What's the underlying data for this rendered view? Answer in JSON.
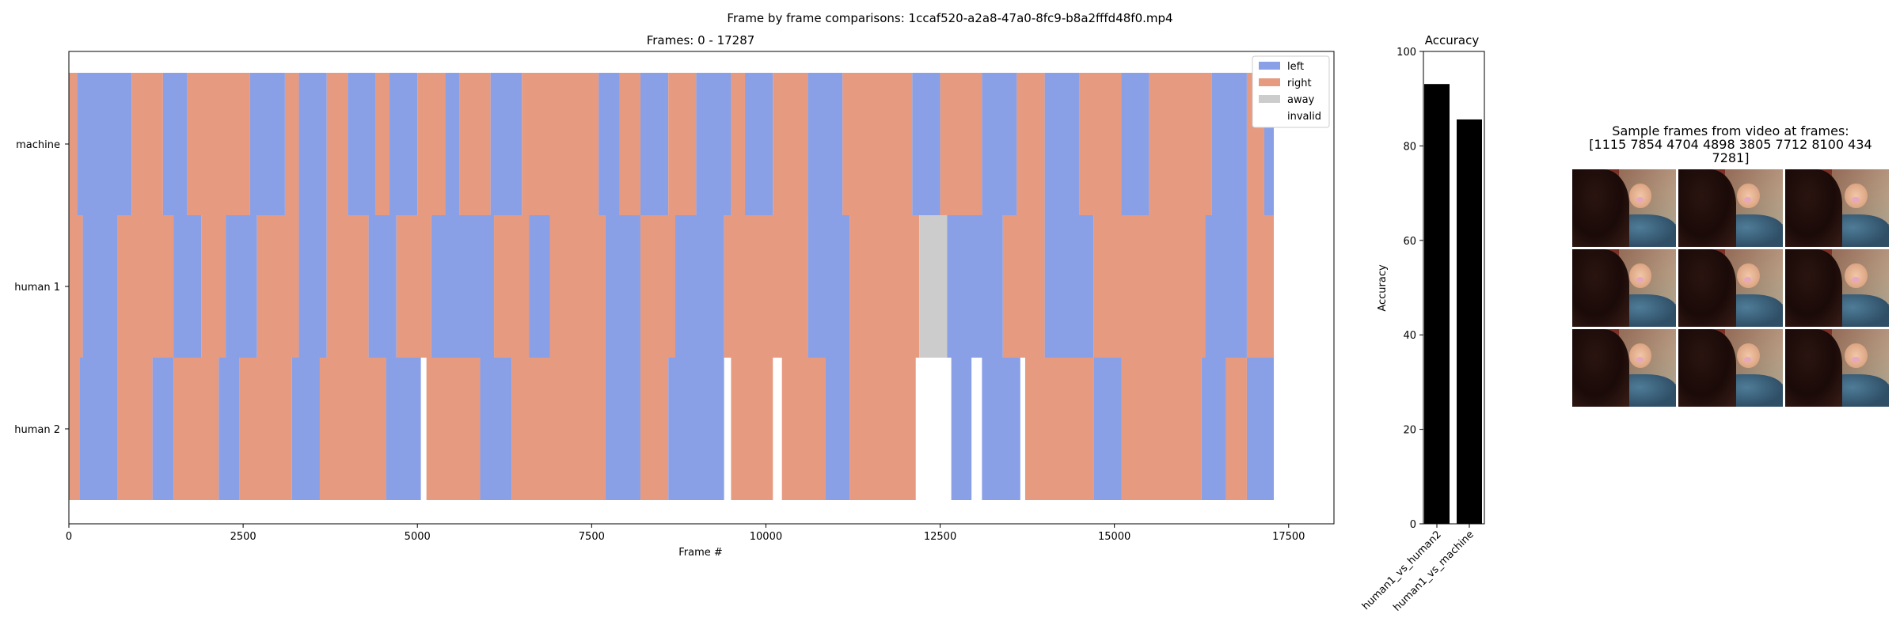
{
  "figure": {
    "suptitle": "Frame by frame comparisons: 1ccaf520-a2a8-47a0-8fc9-b8a2fffd48f0.mp4"
  },
  "chart_data": [
    {
      "type": "timeline",
      "title": "Frames: 0 - 17287",
      "xlabel": "Frame #",
      "xlim": [
        0,
        18150
      ],
      "xticks": [
        0,
        2500,
        5000,
        7500,
        10000,
        12500,
        15000,
        17500
      ],
      "xtick_labels": [
        "0",
        "2500",
        "5000",
        "7500",
        "10000",
        "12500",
        "15000",
        "17500"
      ],
      "rows": [
        "machine",
        "human 1",
        "human 2"
      ],
      "colors": {
        "left": "#8aa0e6",
        "right": "#e69a80",
        "away": "#cccccc",
        "invalid": "#ffffff"
      },
      "legend": [
        "left",
        "right",
        "away",
        "invalid"
      ],
      "legend_location": "upper right",
      "series": [
        {
          "name": "machine",
          "segments": [
            [
              0,
              120,
              "right"
            ],
            [
              120,
              900,
              "left"
            ],
            [
              900,
              1350,
              "right"
            ],
            [
              1350,
              1700,
              "left"
            ],
            [
              1700,
              2600,
              "right"
            ],
            [
              2600,
              3100,
              "left"
            ],
            [
              3100,
              3300,
              "right"
            ],
            [
              3300,
              3700,
              "left"
            ],
            [
              3700,
              4000,
              "right"
            ],
            [
              4000,
              4400,
              "left"
            ],
            [
              4400,
              4600,
              "right"
            ],
            [
              4600,
              5000,
              "left"
            ],
            [
              5000,
              5400,
              "right"
            ],
            [
              5400,
              5600,
              "left"
            ],
            [
              5600,
              6050,
              "right"
            ],
            [
              6050,
              6500,
              "left"
            ],
            [
              6500,
              7600,
              "right"
            ],
            [
              7600,
              7900,
              "left"
            ],
            [
              7900,
              8200,
              "right"
            ],
            [
              8200,
              8600,
              "left"
            ],
            [
              8600,
              9000,
              "right"
            ],
            [
              9000,
              9500,
              "left"
            ],
            [
              9500,
              9700,
              "right"
            ],
            [
              9700,
              10100,
              "left"
            ],
            [
              10100,
              10600,
              "right"
            ],
            [
              10600,
              11100,
              "left"
            ],
            [
              11100,
              12100,
              "right"
            ],
            [
              12100,
              12500,
              "left"
            ],
            [
              12500,
              13100,
              "right"
            ],
            [
              13100,
              13600,
              "left"
            ],
            [
              13600,
              14000,
              "right"
            ],
            [
              14000,
              14500,
              "left"
            ],
            [
              14500,
              15100,
              "right"
            ],
            [
              15100,
              15500,
              "left"
            ],
            [
              15500,
              16400,
              "right"
            ],
            [
              16400,
              16900,
              "left"
            ],
            [
              16900,
              17150,
              "right"
            ],
            [
              17150,
              17287,
              "left"
            ]
          ]
        },
        {
          "name": "human 1",
          "segments": [
            [
              0,
              200,
              "right"
            ],
            [
              200,
              700,
              "left"
            ],
            [
              700,
              1500,
              "right"
            ],
            [
              1500,
              1900,
              "left"
            ],
            [
              1900,
              2250,
              "right"
            ],
            [
              2250,
              2700,
              "left"
            ],
            [
              2700,
              3300,
              "right"
            ],
            [
              3300,
              3700,
              "left"
            ],
            [
              3700,
              4300,
              "right"
            ],
            [
              4300,
              4700,
              "left"
            ],
            [
              4700,
              5200,
              "right"
            ],
            [
              5200,
              6100,
              "left"
            ],
            [
              6100,
              6600,
              "right"
            ],
            [
              6600,
              6900,
              "left"
            ],
            [
              6900,
              7700,
              "right"
            ],
            [
              7700,
              8200,
              "left"
            ],
            [
              8200,
              8700,
              "right"
            ],
            [
              8700,
              9400,
              "left"
            ],
            [
              9400,
              10600,
              "right"
            ],
            [
              10600,
              11200,
              "left"
            ],
            [
              11200,
              12200,
              "right"
            ],
            [
              12200,
              12600,
              "away"
            ],
            [
              12600,
              13400,
              "left"
            ],
            [
              13400,
              14000,
              "right"
            ],
            [
              14000,
              14700,
              "left"
            ],
            [
              14700,
              16300,
              "right"
            ],
            [
              16300,
              16900,
              "left"
            ],
            [
              16900,
              17287,
              "right"
            ]
          ]
        },
        {
          "name": "human 2",
          "segments": [
            [
              0,
              150,
              "right"
            ],
            [
              150,
              700,
              "left"
            ],
            [
              700,
              1200,
              "right"
            ],
            [
              1200,
              1500,
              "left"
            ],
            [
              1500,
              2150,
              "right"
            ],
            [
              2150,
              2450,
              "left"
            ],
            [
              2450,
              3200,
              "right"
            ],
            [
              3200,
              3600,
              "left"
            ],
            [
              3600,
              4550,
              "right"
            ],
            [
              4550,
              5050,
              "left"
            ],
            [
              5050,
              5130,
              "invalid"
            ],
            [
              5130,
              5900,
              "right"
            ],
            [
              5900,
              6350,
              "left"
            ],
            [
              6350,
              7700,
              "right"
            ],
            [
              7700,
              8200,
              "left"
            ],
            [
              8200,
              8600,
              "right"
            ],
            [
              8600,
              9400,
              "left"
            ],
            [
              9400,
              9500,
              "invalid"
            ],
            [
              9500,
              10100,
              "right"
            ],
            [
              10100,
              10230,
              "invalid"
            ],
            [
              10230,
              10850,
              "right"
            ],
            [
              10850,
              11200,
              "left"
            ],
            [
              11200,
              12150,
              "right"
            ],
            [
              12150,
              12660,
              "invalid"
            ],
            [
              12660,
              12950,
              "left"
            ],
            [
              12950,
              13100,
              "invalid"
            ],
            [
              13100,
              13650,
              "left"
            ],
            [
              13650,
              13720,
              "invalid"
            ],
            [
              13720,
              14700,
              "right"
            ],
            [
              14700,
              15100,
              "left"
            ],
            [
              15100,
              16250,
              "right"
            ],
            [
              16250,
              16600,
              "left"
            ],
            [
              16600,
              16900,
              "right"
            ],
            [
              16900,
              17287,
              "left"
            ]
          ]
        }
      ]
    },
    {
      "type": "bar",
      "title": "Accuracy",
      "ylabel": "Accuracy",
      "categories": [
        "human1_vs_human2",
        "human1_vs_machine"
      ],
      "values": [
        93.1,
        85.6
      ],
      "ylim": [
        0,
        100
      ],
      "yticks": [
        0,
        20,
        40,
        60,
        80,
        100
      ],
      "color": "#000000"
    }
  ],
  "samples": {
    "title": "Sample frames from video at frames:\n[1115 7854 4704 4898 3805 7712 8100  434\n 7281]",
    "title_lines": [
      "Sample frames from video at frames:",
      "[1115 7854 4704 4898 3805 7712 8100  434",
      "7281]"
    ],
    "frames": [
      1115,
      7854,
      4704,
      4898,
      3805,
      7712,
      8100,
      434,
      7281
    ]
  }
}
